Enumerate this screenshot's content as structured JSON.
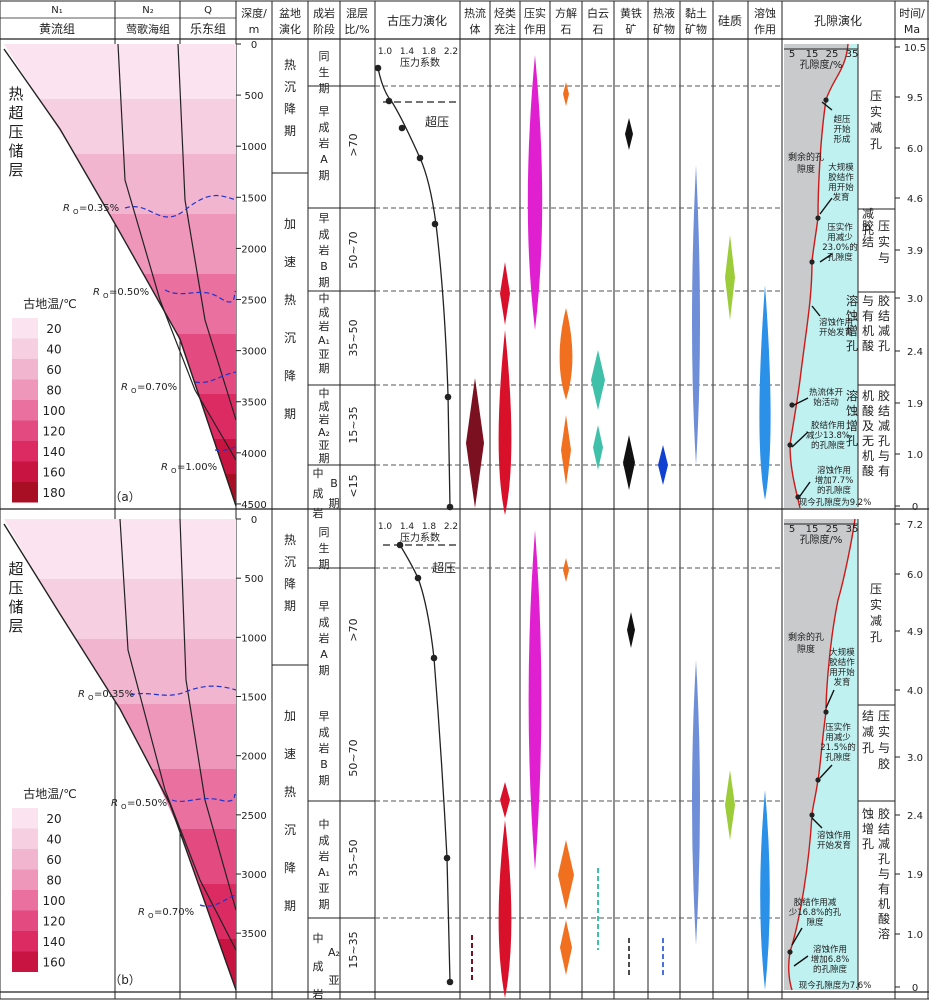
{
  "header": {
    "stratigraphy": {
      "N1": "N₁",
      "N2": "N₂",
      "Q": "Q",
      "huangliu": "黄流组",
      "yinggehai": "莺歌海组",
      "ledong": "乐东组"
    },
    "depth": [
      "深度/",
      "m"
    ],
    "basin": [
      "盆地",
      "演化"
    ],
    "diagenesis": [
      "成岩",
      "阶段"
    ],
    "mixed": [
      "混层",
      "比/%"
    ],
    "paleopressure": "古压力演化",
    "hydrothermal": [
      "热流",
      "体"
    ],
    "hydrocarbon": [
      "烃类",
      "充注"
    ],
    "compaction": [
      "压实",
      "作用"
    ],
    "calcite": [
      "方解",
      "石"
    ],
    "dolomite": [
      "白云",
      "石"
    ],
    "pyrite": [
      "黄铁",
      "矿"
    ],
    "hydrothermal_minerals": [
      "热液",
      "矿物"
    ],
    "clay": [
      "黏土",
      "矿物"
    ],
    "siliceous": "硅质",
    "dissolution": [
      "溶蚀",
      "作用"
    ],
    "porosity_evolution": "孔隙演化",
    "time": [
      "时间/",
      "Ma"
    ]
  },
  "panel_a": {
    "label": "（a）",
    "title": [
      "热",
      "超",
      "压",
      "储",
      "层"
    ],
    "legend_title": "古地温/℃",
    "legend_values": [
      "20",
      "40",
      "60",
      "80",
      "100",
      "120",
      "140",
      "160",
      "180"
    ],
    "ro_labels": [
      "=0.35%",
      "=0.50%",
      "=0.70%",
      "=1.00%"
    ],
    "depth_ticks": [
      "0",
      "500",
      "1000",
      "1500",
      "2000",
      "2500",
      "3000",
      "3500",
      "4000",
      "4500"
    ],
    "basin_stages": [
      [
        "热",
        "沉",
        "降",
        "期"
      ],
      [
        "加",
        "速",
        "热",
        "沉",
        "降",
        "期"
      ]
    ],
    "diag_stages": [
      [
        "同",
        "生",
        "期"
      ],
      [
        "早",
        "成",
        "岩",
        "A",
        "期"
      ],
      [
        "早",
        "成",
        "岩",
        "B",
        "期"
      ],
      [
        "中",
        "成",
        "岩",
        "A₁",
        "亚",
        "期"
      ],
      [
        "中",
        "成",
        "岩",
        "A₂",
        "亚",
        "期"
      ],
      [
        "中",
        "B",
        "成",
        "期",
        "岩"
      ]
    ],
    "mixed_ratios": [
      ">70",
      "50~70",
      "35~50",
      "15~35",
      "<15"
    ],
    "pressure_ticks": [
      "1.0",
      "1.4",
      "1.8",
      "2.2"
    ],
    "pressure_label": "压力系数",
    "overpressure_label": "超压",
    "porosity_ticks": [
      "5",
      "15",
      "25",
      "35"
    ],
    "porosity_axis": "孔隙度/%",
    "remaining_porosity": [
      "剩余的孔",
      "隙度"
    ],
    "annotations": [
      [
        "超压",
        "开始",
        "形成"
      ],
      [
        "大规模",
        "胶结作",
        "用开始",
        "发育"
      ],
      [
        "压实作",
        "用减少",
        "23.0%的",
        "孔隙度"
      ],
      [
        "溶蚀作用",
        "开始发育"
      ],
      [
        "热流体开",
        "始活动"
      ],
      [
        "胶结作用",
        "减少13.8%",
        "的孔隙度"
      ],
      [
        "溶蚀作用",
        "增加7.7%",
        "的孔隙度"
      ]
    ],
    "current_porosity": "现今孔隙度为9.2%",
    "phases": [
      [
        "压",
        "实",
        "减",
        "孔"
      ],
      [
        "压",
        "实",
        "与",
        "胶",
        "结"
      ],
      [
        "减",
        "孔"
      ],
      [
        "胶",
        "结",
        "减",
        "孔",
        "与",
        "有",
        "机",
        "酸",
        "溶",
        "蚀",
        "增",
        "孔"
      ],
      [
        "胶",
        "结",
        "减",
        "孔",
        "与",
        "有",
        "机",
        "酸",
        "及",
        "无",
        "机",
        "酸",
        "溶",
        "蚀",
        "增",
        "孔"
      ]
    ],
    "time_ticks": [
      "10.5",
      "9.5",
      "6.0",
      "4.6",
      "3.9",
      "3.0",
      "2.4",
      "1.9",
      "1.0",
      "0"
    ]
  },
  "panel_b": {
    "label": "（b）",
    "title": [
      "超",
      "压",
      "储",
      "层"
    ],
    "legend_title": "古地温/℃",
    "legend_values": [
      "20",
      "40",
      "60",
      "80",
      "100",
      "120",
      "140",
      "160"
    ],
    "ro_labels": [
      "=0.35%",
      "=0.50%",
      "=0.70%"
    ],
    "depth_ticks": [
      "0",
      "500",
      "1000",
      "1500",
      "2000",
      "2500",
      "3000",
      "3500"
    ],
    "basin_stages": [
      [
        "热",
        "沉",
        "降",
        "期"
      ],
      [
        "加",
        "速",
        "热",
        "沉",
        "降",
        "期"
      ]
    ],
    "diag_stages": [
      [
        "同",
        "生",
        "期"
      ],
      [
        "早",
        "成",
        "岩",
        "A",
        "期"
      ],
      [
        "早",
        "成",
        "岩",
        "B",
        "期"
      ],
      [
        "中",
        "成",
        "岩",
        "A₁",
        "亚",
        "期"
      ],
      [
        "中",
        "A₂",
        "成",
        "亚",
        "岩",
        "期"
      ]
    ],
    "mixed_ratios": [
      ">70",
      "50~70",
      "35~50",
      "15~35"
    ],
    "pressure_ticks": [
      "1.0",
      "1.4",
      "1.8",
      "2.2"
    ],
    "pressure_label": "压力系数",
    "overpressure_label": "超压",
    "porosity_ticks": [
      "5",
      "15",
      "25",
      "35"
    ],
    "porosity_axis": "孔隙度/%",
    "remaining_porosity": [
      "剩余的孔",
      "隙度"
    ],
    "annotations": [
      [
        "大规模",
        "胶结作",
        "用开始",
        "发育"
      ],
      [
        "压实作",
        "用减少",
        "21.5%的",
        "孔隙度"
      ],
      [
        "溶蚀作用",
        "开始发育"
      ],
      [
        "胶结作用减",
        "少16.8%的孔",
        "隙度"
      ],
      [
        "溶蚀作用",
        "增加6.8%",
        "的孔隙度"
      ]
    ],
    "current_porosity": "现今孔隙度为7.6%",
    "phases": [
      [
        "压",
        "实",
        "减",
        "孔"
      ],
      [
        "压",
        "实",
        "与",
        "胶",
        "结",
        "减",
        "孔"
      ],
      [
        "胶",
        "结",
        "减",
        "孔",
        "与",
        "有",
        "机",
        "酸",
        "溶",
        "蚀",
        "增",
        "孔"
      ]
    ],
    "time_ticks": [
      "7.2",
      "6.0",
      "4.9",
      "4.0",
      "3.0",
      "2.4",
      "1.9",
      "1.0",
      "0"
    ]
  },
  "colors": {
    "ro_line": "#2233cc",
    "hydrothermal": "#7a1020",
    "hydrocarbon": "#d8102a",
    "compaction": "#e020d0",
    "calcite": "#f07020",
    "dolomite": "#40c0a8",
    "pyrite": "#111111",
    "hydrothermal_mineral": "#1040d0",
    "clay": "#6f8ed8",
    "siliceous": "#9ccc3a",
    "dissolution": "#2a90e8",
    "porosity_curve": "#d01818",
    "remaining_fill": "#c8cacc",
    "lost_fill": "#bff1f1"
  }
}
